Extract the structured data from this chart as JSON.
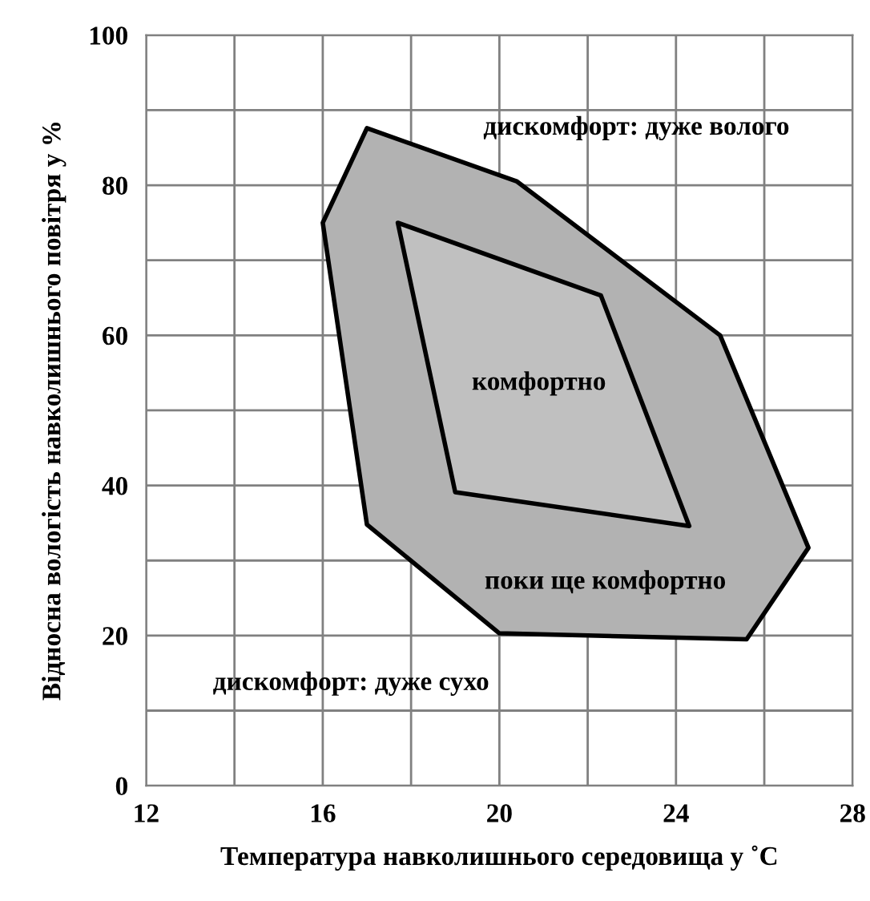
{
  "chart_data": {
    "type": "area",
    "xlabel": "Температура навколишнього середовища у ˚C",
    "ylabel": "Відносна вологість навколишнього повітря у %",
    "series": [
      {
        "color": "#b2b2b2",
        "x": [
          17,
          20.4,
          25,
          27,
          25.6,
          20,
          17,
          16
        ],
        "values": [
          87.6,
          80.5,
          60,
          31.7,
          19.5,
          20.3,
          34.8,
          75
        ]
      },
      {
        "color": "#c0c0c0",
        "x": [
          17.7,
          22.3,
          24.3,
          19
        ],
        "values": [
          75,
          65.3,
          34.6,
          39.1
        ]
      }
    ],
    "xlim": [
      12,
      28
    ],
    "ylim": [
      0,
      100
    ],
    "xticks": [
      12,
      {
        "value": 14,
        "label": null
      },
      16,
      {
        "value": 18,
        "label": null
      },
      20,
      {
        "value": 22,
        "label": null
      },
      24,
      {
        "value": 26,
        "label": null
      },
      28
    ],
    "yticks": [
      0,
      {
        "value": 10,
        "label": null
      },
      20,
      {
        "value": 30,
        "label": null
      },
      40,
      {
        "value": 50,
        "label": null
      },
      60,
      {
        "value": 70,
        "label": null
      },
      80,
      {
        "value": 90,
        "label": null
      },
      100
    ],
    "grid": true,
    "annotations": [
      "дискомфорт: дуже волого",
      "комфортно",
      "поки ще комфортно",
      "дискомфорт: дуже сухо"
    ]
  }
}
